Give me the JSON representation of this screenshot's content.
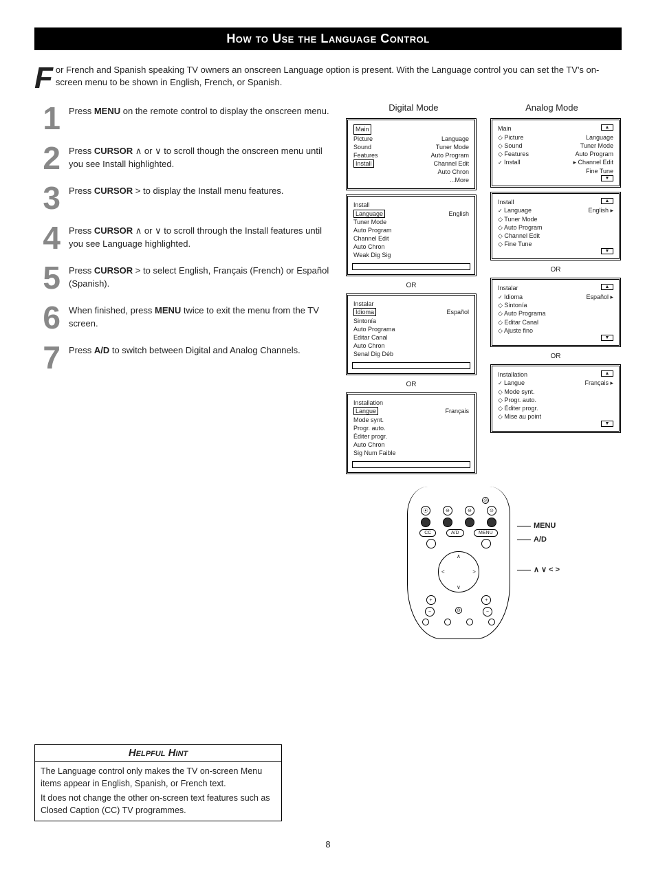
{
  "title": "How to Use the Language Control",
  "intro_first": "F",
  "intro_rest": "or French and Spanish speaking TV owners an onscreen Language option is present. With the Language control you can set the TV's on-screen menu to be shown in English, French, or Spanish.",
  "steps": [
    {
      "n": "1",
      "pre": "Press ",
      "b": "MENU",
      "post": " on the remote control to display the onscreen menu."
    },
    {
      "n": "2",
      "pre": "Press ",
      "b": "CURSOR",
      "post": " ∧ or ∨ to scroll though the onscreen menu until you see Install highlighted."
    },
    {
      "n": "3",
      "pre": "Press ",
      "b": "CURSOR",
      "post": "  >  to display the Install menu features."
    },
    {
      "n": "4",
      "pre": "Press ",
      "b": "CURSOR",
      "post": " ∧  or ∨  to scroll through the Install features until you see Language highlighted."
    },
    {
      "n": "5",
      "pre": "Press ",
      "b": "CURSOR",
      "post": "  >  to select English, Français (French) or Español (Spanish)."
    },
    {
      "n": "6",
      "pre": "When finished, press ",
      "b": "MENU",
      "post": " twice to exit the menu from the TV screen."
    },
    {
      "n": "7",
      "pre": "Press ",
      "b": "A/D",
      "post": " to switch between Digital and Analog Channels."
    }
  ],
  "hint": {
    "title": "Helpful Hint",
    "line1": "The Language control only makes the TV on-screen Menu items appear in English, Spanish, or French text.",
    "line2": "It does not change the other on-screen text features such as Closed Caption (CC) TV programmes."
  },
  "modes": {
    "digital": "Digital Mode",
    "analog": "Analog Mode"
  },
  "or": "OR",
  "digital_screens": {
    "main": {
      "header": "Main",
      "left": [
        "Picture",
        "Sound",
        "Features",
        "Install"
      ],
      "right": [
        "Language",
        "Tuner Mode",
        "Auto Program",
        "Channel Edit",
        "Auto Chron",
        "...More"
      ],
      "highlight": "Install"
    },
    "install_en": {
      "header": "Install",
      "items": [
        "Language",
        "Tuner Mode",
        "Auto Program",
        "Channel Edit",
        "Auto Chron",
        "Weak Dig Sig"
      ],
      "highlight": "Language",
      "value": "English"
    },
    "install_es": {
      "header": "Instalar",
      "items": [
        "Idioma",
        "Sintonía",
        "Auto Programa",
        "Editar Canal",
        "Auto Chron",
        "Senal Dig Déb"
      ],
      "highlight": "Idioma",
      "value": "Español"
    },
    "install_fr": {
      "header": "Installation",
      "items": [
        "Langue",
        "Mode synt.",
        "Progr. auto.",
        "Éditer progr.",
        "Auto Chron",
        "Sig Num Faible"
      ],
      "highlight": "Langue",
      "value": "Français"
    }
  },
  "analog_screens": {
    "main": {
      "header": "Main",
      "left": [
        "Picture",
        "Sound",
        "Features",
        "Install"
      ],
      "right": [
        "Language",
        "Tuner Mode",
        "Auto Program",
        "Channel Edit",
        "Fine Tune"
      ],
      "highlight": "Install"
    },
    "install_en": {
      "header": "Install",
      "items": [
        "Language",
        "Tuner Mode",
        "Auto Program",
        "Channel Edit",
        "Fine Tune"
      ],
      "highlight": "Language",
      "value": "English"
    },
    "install_es": {
      "header": "Instalar",
      "items": [
        "Idioma",
        "Sintonía",
        "Auto Programa",
        "Editar Canal",
        "Ajuste fino"
      ],
      "highlight": "Idioma",
      "value": "Español"
    },
    "install_fr": {
      "header": "Installation",
      "items": [
        "Langue",
        "Mode synt.",
        "Progr. auto.",
        "Éditer progr.",
        "Mise au point"
      ],
      "highlight": "Langue",
      "value": "Français"
    }
  },
  "remote_labels": {
    "menu": "MENU",
    "ad": "A/D",
    "arrows": "∧ ∨ < >"
  },
  "page": "8",
  "colors": {
    "stepnum": "#888888",
    "titlebar_bg": "#000000",
    "titlebar_fg": "#ffffff"
  }
}
